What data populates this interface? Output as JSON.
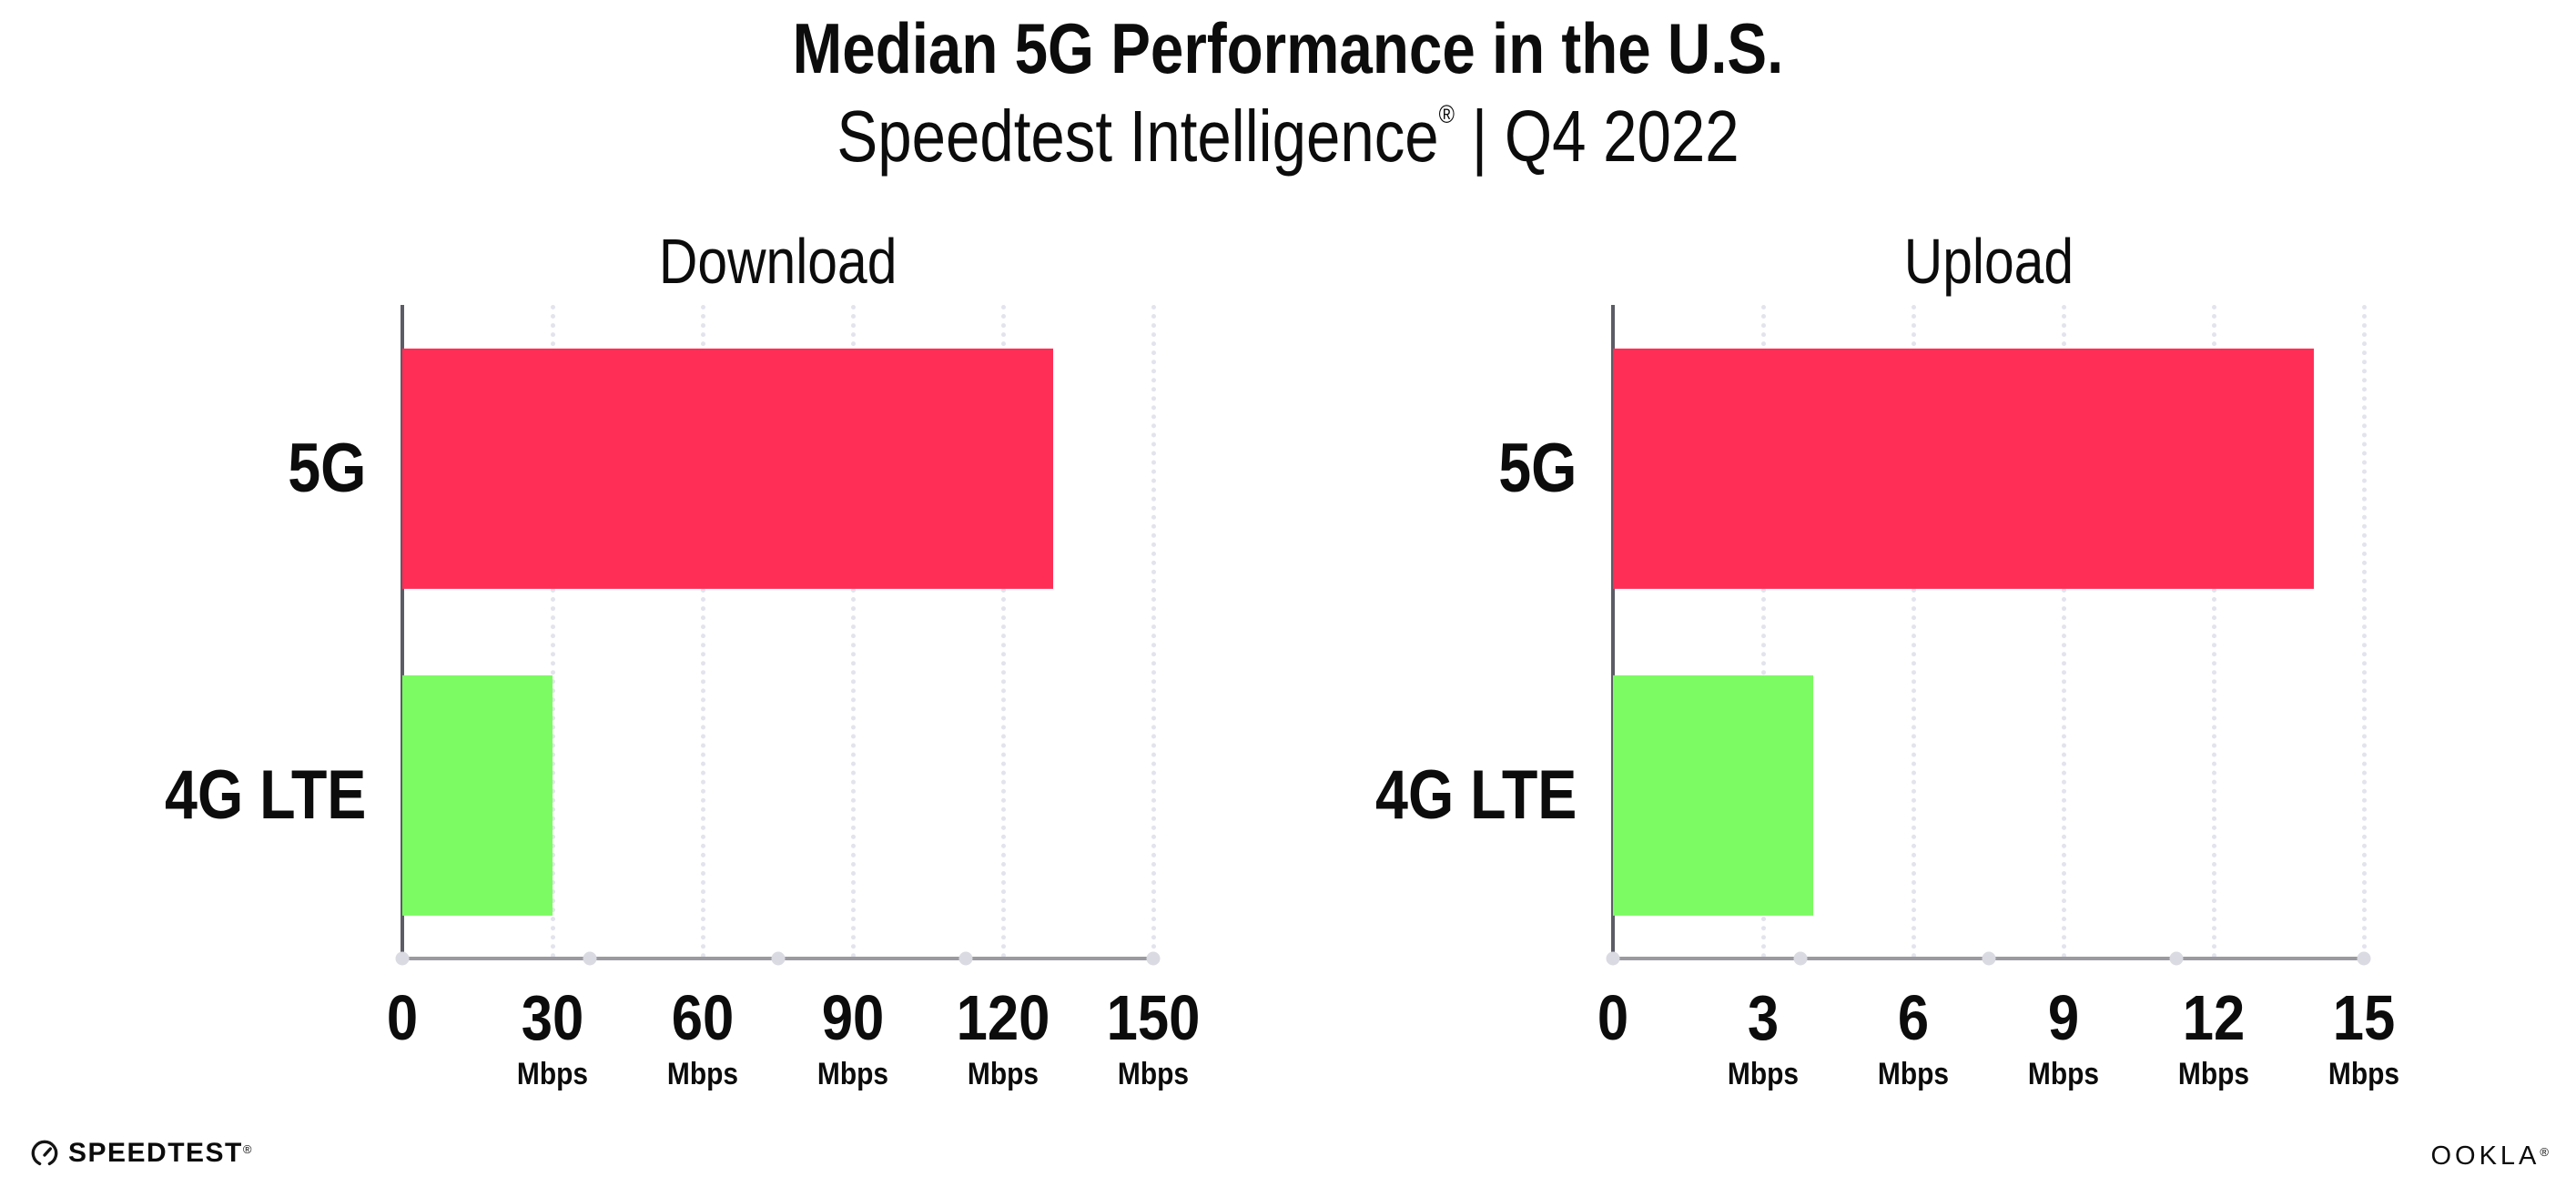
{
  "header": {
    "title": "Median 5G Performance in the U.S.",
    "subtitle_brand": "Speedtest Intelligence",
    "subtitle_reg": "®",
    "subtitle_rest": " | Q4 2022"
  },
  "chart_data": [
    {
      "type": "bar",
      "orientation": "horizontal",
      "title": "Download",
      "categories": [
        "5G",
        "4G LTE"
      ],
      "values": [
        130,
        30
      ],
      "unit": "Mbps",
      "xlim": [
        0,
        150
      ],
      "xticks": [
        0,
        30,
        60,
        90,
        120,
        150
      ],
      "tick_unit_label": "Mbps",
      "bar_colors": [
        "#FF2E56",
        "#7CFB62"
      ],
      "grid": "vertical-dotted",
      "legend": "none"
    },
    {
      "type": "bar",
      "orientation": "horizontal",
      "title": "Upload",
      "categories": [
        "5G",
        "4G LTE"
      ],
      "values": [
        14,
        4
      ],
      "unit": "Mbps",
      "xlim": [
        0,
        15
      ],
      "xticks": [
        0,
        3,
        6,
        9,
        12,
        15
      ],
      "tick_unit_label": "Mbps",
      "bar_colors": [
        "#FF2E56",
        "#7CFB62"
      ],
      "grid": "vertical-dotted",
      "legend": "none"
    }
  ],
  "footer": {
    "speedtest": "SPEEDTEST",
    "speedtest_mark": "®",
    "ookla": "OOKLA",
    "ookla_mark": "®"
  },
  "colors": {
    "bar_5g": "#FF2E56",
    "bar_4g_lte": "#7CFB62",
    "axis": "#9A9AA0",
    "spine": "#5C5C66",
    "gridline": "#E3E3ED",
    "axis_dot": "#DADAE2",
    "text": "#0C0C0C"
  }
}
